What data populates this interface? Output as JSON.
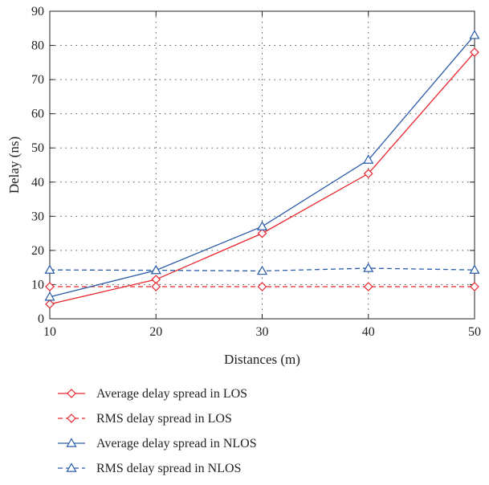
{
  "chart_data": {
    "type": "line",
    "title": "",
    "xlabel": "Distances (m)",
    "ylabel": "Delay (ns)",
    "xlim": [
      10,
      50
    ],
    "ylim": [
      0,
      90
    ],
    "xticks": [
      "10",
      "20",
      "30",
      "40",
      "50"
    ],
    "yticks": [
      "0",
      "10",
      "20",
      "30",
      "40",
      "50",
      "60",
      "70",
      "80",
      "90"
    ],
    "grid": "dotted",
    "legend_position": "bottom-left, below plot",
    "x": [
      10,
      20,
      30,
      40,
      50
    ],
    "series": [
      {
        "name": "Average delay spread in LOS",
        "values": [
          4.3,
          11.5,
          25.0,
          42.5,
          78.0
        ],
        "color": "#e8262c",
        "line_style": "solid",
        "marker": "diamond"
      },
      {
        "name": "RMS delay spread in LOS",
        "values": [
          9.4,
          9.4,
          9.4,
          9.4,
          9.4
        ],
        "color": "#e8262c",
        "line_style": "dashed",
        "marker": "diamond"
      },
      {
        "name": "Average delay spread in NLOS",
        "values": [
          6.4,
          14.2,
          27.0,
          46.5,
          83.0
        ],
        "color": "#2a5ba8",
        "line_style": "solid",
        "marker": "triangle"
      },
      {
        "name": "RMS delay spread in NLOS",
        "values": [
          14.3,
          14.2,
          14.0,
          14.8,
          14.3
        ],
        "color": "#2a5ba8",
        "line_style": "dashed",
        "marker": "triangle"
      }
    ]
  }
}
